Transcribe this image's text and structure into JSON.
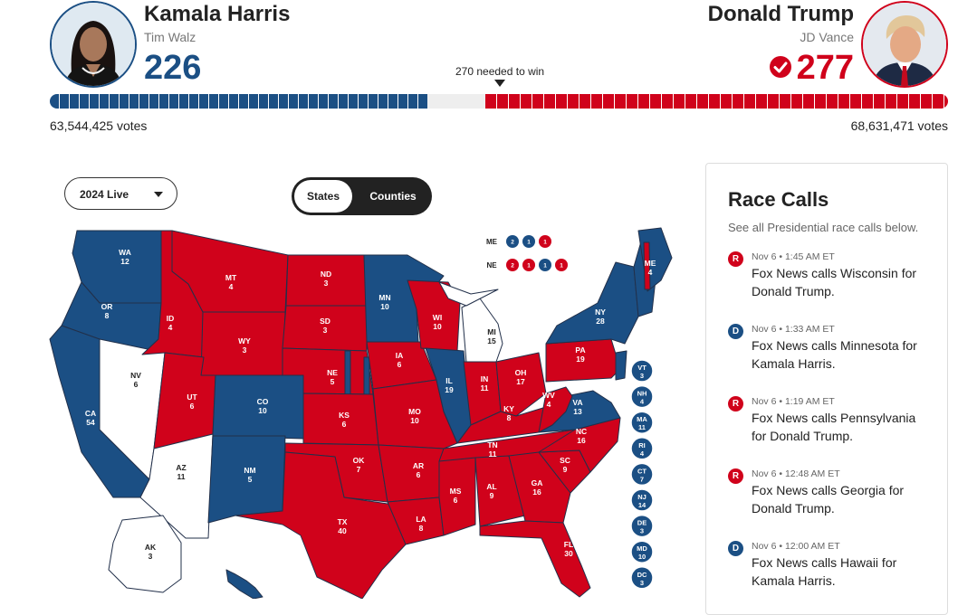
{
  "header": {
    "democrat": {
      "name": "Kamala Harris",
      "running_mate": "Tim Walz",
      "electoral_votes": "226",
      "popular_votes": "63,544,425 votes",
      "color": "#1b4f84"
    },
    "republican": {
      "name": "Donald Trump",
      "running_mate": "JD Vance",
      "electoral_votes": "277",
      "popular_votes": "68,631,471 votes",
      "color": "#d0021b",
      "winner_icon": "check-circle-icon"
    },
    "needed_label": "270 needed to win",
    "progress": {
      "dem_share": 0.42,
      "rep_share": 0.515,
      "threshold_share": 0.502
    }
  },
  "controls": {
    "year_select": "2024 Live",
    "view_toggle": {
      "selected": "States",
      "other": "Counties"
    }
  },
  "map": {
    "split_states": {
      "ME": {
        "label": "ME",
        "districts": [
          "2",
          "1",
          "1"
        ]
      },
      "NE": {
        "label": "NE",
        "districts": [
          "2",
          "1",
          "1",
          "1"
        ]
      }
    },
    "states": [
      {
        "abbr": "WA",
        "ev": "12",
        "winner": "D"
      },
      {
        "abbr": "OR",
        "ev": "8",
        "winner": "D"
      },
      {
        "abbr": "CA",
        "ev": "54",
        "winner": "D"
      },
      {
        "abbr": "NV",
        "ev": "6",
        "winner": "none"
      },
      {
        "abbr": "ID",
        "ev": "4",
        "winner": "R"
      },
      {
        "abbr": "MT",
        "ev": "4",
        "winner": "R"
      },
      {
        "abbr": "WY",
        "ev": "3",
        "winner": "R"
      },
      {
        "abbr": "UT",
        "ev": "6",
        "winner": "R"
      },
      {
        "abbr": "AZ",
        "ev": "11",
        "winner": "none"
      },
      {
        "abbr": "CO",
        "ev": "10",
        "winner": "D"
      },
      {
        "abbr": "NM",
        "ev": "5",
        "winner": "D"
      },
      {
        "abbr": "ND",
        "ev": "3",
        "winner": "R"
      },
      {
        "abbr": "SD",
        "ev": "3",
        "winner": "R"
      },
      {
        "abbr": "NE",
        "ev": "5",
        "winner": "R"
      },
      {
        "abbr": "KS",
        "ev": "6",
        "winner": "R"
      },
      {
        "abbr": "OK",
        "ev": "7",
        "winner": "R"
      },
      {
        "abbr": "TX",
        "ev": "40",
        "winner": "R"
      },
      {
        "abbr": "MN",
        "ev": "10",
        "winner": "D"
      },
      {
        "abbr": "IA",
        "ev": "6",
        "winner": "R"
      },
      {
        "abbr": "MO",
        "ev": "10",
        "winner": "R"
      },
      {
        "abbr": "AR",
        "ev": "6",
        "winner": "R"
      },
      {
        "abbr": "LA",
        "ev": "8",
        "winner": "R"
      },
      {
        "abbr": "WI",
        "ev": "10",
        "winner": "R"
      },
      {
        "abbr": "IL",
        "ev": "19",
        "winner": "D"
      },
      {
        "abbr": "MI",
        "ev": "15",
        "winner": "none"
      },
      {
        "abbr": "IN",
        "ev": "11",
        "winner": "R"
      },
      {
        "abbr": "OH",
        "ev": "17",
        "winner": "R"
      },
      {
        "abbr": "KY",
        "ev": "8",
        "winner": "R"
      },
      {
        "abbr": "TN",
        "ev": "11",
        "winner": "R"
      },
      {
        "abbr": "MS",
        "ev": "6",
        "winner": "R"
      },
      {
        "abbr": "AL",
        "ev": "9",
        "winner": "R"
      },
      {
        "abbr": "GA",
        "ev": "16",
        "winner": "R"
      },
      {
        "abbr": "FL",
        "ev": "30",
        "winner": "R"
      },
      {
        "abbr": "SC",
        "ev": "9",
        "winner": "R"
      },
      {
        "abbr": "NC",
        "ev": "16",
        "winner": "R"
      },
      {
        "abbr": "VA",
        "ev": "13",
        "winner": "D"
      },
      {
        "abbr": "WV",
        "ev": "4",
        "winner": "R"
      },
      {
        "abbr": "PA",
        "ev": "19",
        "winner": "R"
      },
      {
        "abbr": "NY",
        "ev": "28",
        "winner": "D"
      },
      {
        "abbr": "ME",
        "ev": "4",
        "winner": "D"
      },
      {
        "abbr": "AK",
        "ev": "3",
        "winner": "none"
      },
      {
        "abbr": "HI",
        "ev": "",
        "winner": "D"
      }
    ],
    "small_states": [
      {
        "abbr": "VT",
        "ev": "3"
      },
      {
        "abbr": "NH",
        "ev": "4"
      },
      {
        "abbr": "MA",
        "ev": "11"
      },
      {
        "abbr": "RI",
        "ev": "4"
      },
      {
        "abbr": "CT",
        "ev": "7"
      },
      {
        "abbr": "NJ",
        "ev": "14"
      },
      {
        "abbr": "DE",
        "ev": "3"
      },
      {
        "abbr": "MD",
        "ev": "10"
      },
      {
        "abbr": "DC",
        "ev": "3"
      }
    ]
  },
  "race_calls": {
    "title": "Race Calls",
    "subtitle": "See all Presidential race calls below.",
    "items": [
      {
        "party": "R",
        "time": "Nov 6 • 1:45 AM ET",
        "text": "Fox News calls Wisconsin for Donald Trump."
      },
      {
        "party": "D",
        "time": "Nov 6 • 1:33 AM ET",
        "text": "Fox News calls Minnesota for Kamala Harris."
      },
      {
        "party": "R",
        "time": "Nov 6 • 1:19 AM ET",
        "text": "Fox News calls Pennsylvania for Donald Trump."
      },
      {
        "party": "R",
        "time": "Nov 6 • 12:48 AM ET",
        "text": "Fox News calls Georgia for Donald Trump."
      },
      {
        "party": "D",
        "time": "Nov 6 • 12:00 AM ET",
        "text": "Fox News calls Hawaii for Kamala Harris."
      }
    ]
  }
}
